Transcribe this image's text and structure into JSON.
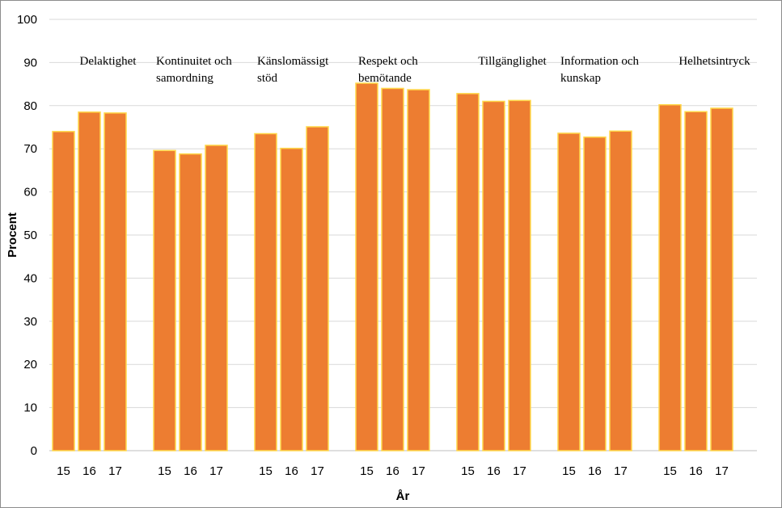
{
  "chart_data": {
    "type": "bar",
    "title": "",
    "xlabel": "År",
    "ylabel": "Procent",
    "ylim": [
      0,
      100
    ],
    "yticks": [
      0,
      10,
      20,
      30,
      40,
      50,
      60,
      70,
      80,
      90,
      100
    ],
    "grid": true,
    "bar_color": "#ED7D31",
    "bar_edge_color": "#FFD84A",
    "groups": [
      {
        "label_lines": [
          "Delaktighet"
        ],
        "years": [
          "15",
          "16",
          "17"
        ],
        "values": [
          74,
          78.5,
          78.3
        ]
      },
      {
        "label_lines": [
          "Kontinuitet och",
          "samordning"
        ],
        "years": [
          "15",
          "16",
          "17"
        ],
        "values": [
          69.6,
          68.8,
          70.8
        ]
      },
      {
        "label_lines": [
          "Känslomässigt",
          "stöd"
        ],
        "years": [
          "15",
          "16",
          "17"
        ],
        "values": [
          73.5,
          70.1,
          75.1
        ]
      },
      {
        "label_lines": [
          "Respekt och",
          "bemötande"
        ],
        "years": [
          "15",
          "16",
          "17"
        ],
        "values": [
          85.2,
          84,
          83.7
        ]
      },
      {
        "label_lines": [
          "Tillgänglighet"
        ],
        "years": [
          "15",
          "16",
          "17"
        ],
        "values": [
          82.8,
          81,
          81.2
        ]
      },
      {
        "label_lines": [
          "Information och",
          "kunskap"
        ],
        "years": [
          "15",
          "16",
          "17"
        ],
        "values": [
          73.6,
          72.7,
          74.1
        ]
      },
      {
        "label_lines": [
          "Helhetsintryck"
        ],
        "years": [
          "15",
          "16",
          "17"
        ],
        "values": [
          80.2,
          78.6,
          79.4
        ]
      }
    ]
  }
}
